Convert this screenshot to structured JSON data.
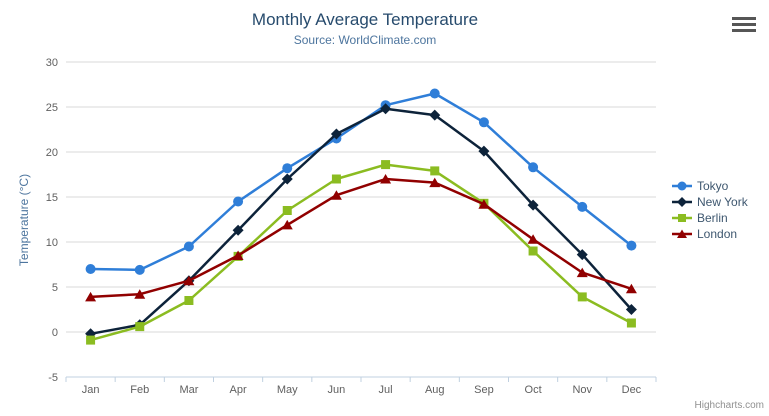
{
  "chart_data": {
    "type": "line",
    "title": "Monthly Average Temperature",
    "subtitle": "Source: WorldClimate.com",
    "xlabel": "",
    "ylabel": "Temperature (°C)",
    "ylim": [
      -5,
      30
    ],
    "yticks": [
      -5,
      0,
      5,
      10,
      15,
      20,
      25,
      30
    ],
    "ytick_labels": [
      "-5",
      "0",
      "5",
      "10",
      "15",
      "20",
      "25",
      "30"
    ],
    "categories": [
      "Jan",
      "Feb",
      "Mar",
      "Apr",
      "May",
      "Jun",
      "Jul",
      "Aug",
      "Sep",
      "Oct",
      "Nov",
      "Dec"
    ],
    "grid": true,
    "legend_position": "right",
    "colors": {
      "title": "#274b6d",
      "subtitle": "#4d759e",
      "axis_title": "#4d759e",
      "axis_labels": "#606060",
      "gridline": "#d8d8d8",
      "axis_line": "#c0d0e0",
      "tick_mark": "#c0d0e0",
      "legend_text": "#3e576f",
      "credits_text": "#909090",
      "background": "#ffffff"
    },
    "series": [
      {
        "name": "Tokyo",
        "color": "#2f7ed8",
        "marker": "circle",
        "values": [
          7.0,
          6.9,
          9.5,
          14.5,
          18.2,
          21.5,
          25.2,
          26.5,
          23.3,
          18.3,
          13.9,
          9.6
        ]
      },
      {
        "name": "New York",
        "color": "#0d233a",
        "marker": "diamond",
        "values": [
          -0.2,
          0.8,
          5.7,
          11.3,
          17.0,
          22.0,
          24.8,
          24.1,
          20.1,
          14.1,
          8.6,
          2.5
        ]
      },
      {
        "name": "Berlin",
        "color": "#8bbc21",
        "marker": "square",
        "values": [
          -0.9,
          0.6,
          3.5,
          8.4,
          13.5,
          17.0,
          18.6,
          17.9,
          14.3,
          9.0,
          3.9,
          1.0
        ]
      },
      {
        "name": "London",
        "color": "#910000",
        "marker": "triangle",
        "values": [
          3.9,
          4.2,
          5.7,
          8.5,
          11.9,
          15.2,
          17.0,
          16.6,
          14.2,
          10.3,
          6.6,
          4.8
        ]
      }
    ]
  },
  "export_menu": {
    "icon": "hamburger-menu-icon"
  },
  "credits": {
    "label": "Highcharts.com"
  }
}
